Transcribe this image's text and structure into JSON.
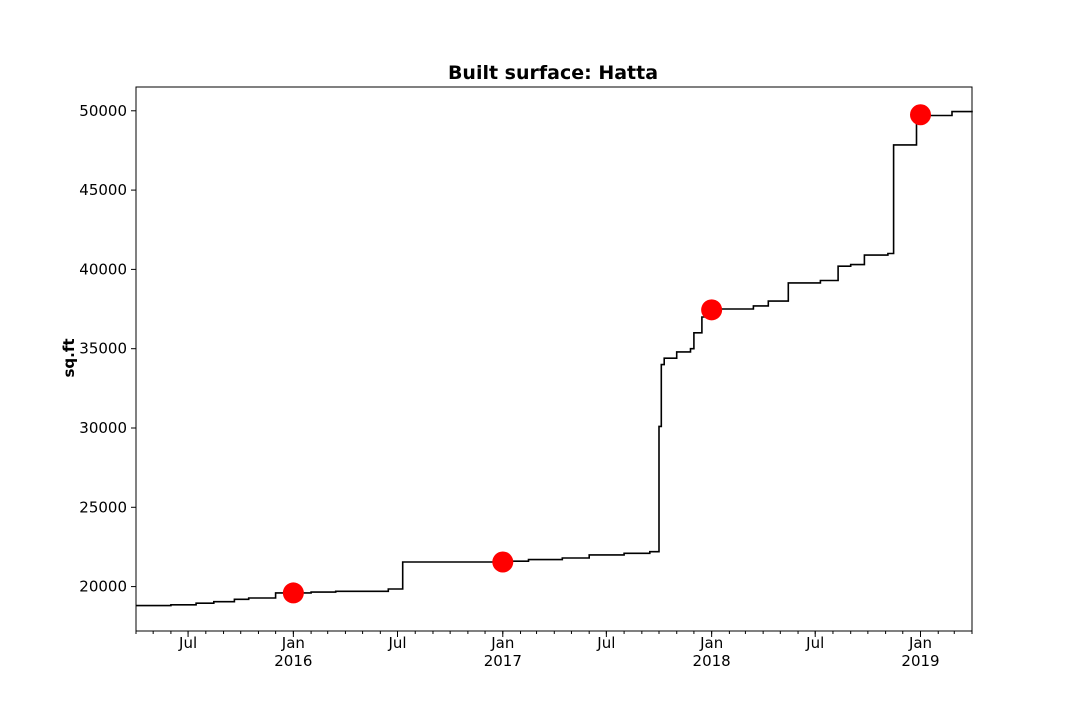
{
  "chart_data": {
    "type": "line",
    "title": "Built surface: Hatta",
    "xlabel": "",
    "ylabel": "sq.ft",
    "xlim": [
      "2015-04-01",
      "2019-04-01"
    ],
    "ylim": [
      17200,
      51500
    ],
    "y_ticks": [
      20000,
      25000,
      30000,
      35000,
      40000,
      45000,
      50000
    ],
    "x_ticks": [
      {
        "date": "2015-07-01",
        "label": "Jul",
        "sublabel": ""
      },
      {
        "date": "2016-01-01",
        "label": "Jan",
        "sublabel": "2016"
      },
      {
        "date": "2016-07-01",
        "label": "Jul",
        "sublabel": ""
      },
      {
        "date": "2017-01-01",
        "label": "Jan",
        "sublabel": "2017"
      },
      {
        "date": "2017-07-01",
        "label": "Jul",
        "sublabel": ""
      },
      {
        "date": "2018-01-01",
        "label": "Jan",
        "sublabel": "2018"
      },
      {
        "date": "2018-07-01",
        "label": "Jul",
        "sublabel": ""
      },
      {
        "date": "2019-01-01",
        "label": "Jan",
        "sublabel": "2019"
      }
    ],
    "grid": false,
    "series": [
      {
        "style": "step",
        "color": "#000000",
        "points": [
          [
            "2015-04-01",
            18800
          ],
          [
            "2015-06-01",
            18850
          ],
          [
            "2015-07-15",
            18950
          ],
          [
            "2015-08-15",
            19050
          ],
          [
            "2015-09-20",
            19200
          ],
          [
            "2015-10-15",
            19280
          ],
          [
            "2015-12-01",
            19600
          ],
          [
            "2016-02-01",
            19650
          ],
          [
            "2016-03-15",
            19700
          ],
          [
            "2016-06-15",
            19850
          ],
          [
            "2016-07-10",
            21550
          ],
          [
            "2017-01-01",
            21600
          ],
          [
            "2017-02-15",
            21700
          ],
          [
            "2017-04-15",
            21800
          ],
          [
            "2017-06-01",
            22000
          ],
          [
            "2017-08-01",
            22100
          ],
          [
            "2017-09-15",
            22200
          ],
          [
            "2017-10-01",
            30100
          ],
          [
            "2017-10-05",
            34000
          ],
          [
            "2017-10-10",
            34400
          ],
          [
            "2017-11-01",
            34800
          ],
          [
            "2017-11-25",
            35000
          ],
          [
            "2017-12-01",
            36000
          ],
          [
            "2017-12-15",
            37000
          ],
          [
            "2017-12-22",
            37500
          ],
          [
            "2018-03-15",
            37700
          ],
          [
            "2018-04-10",
            38000
          ],
          [
            "2018-05-15",
            39150
          ],
          [
            "2018-07-10",
            39300
          ],
          [
            "2018-08-10",
            40200
          ],
          [
            "2018-09-01",
            40300
          ],
          [
            "2018-09-25",
            40900
          ],
          [
            "2018-11-05",
            41000
          ],
          [
            "2018-11-15",
            47850
          ],
          [
            "2018-12-25",
            49700
          ],
          [
            "2019-02-25",
            49950
          ],
          [
            "2019-04-01",
            50000
          ]
        ]
      },
      {
        "style": "markers",
        "color": "#ff0000",
        "points": [
          [
            "2016-01-01",
            19600
          ],
          [
            "2017-01-01",
            21550
          ],
          [
            "2018-01-01",
            37450
          ],
          [
            "2019-01-01",
            49750
          ]
        ]
      }
    ]
  }
}
